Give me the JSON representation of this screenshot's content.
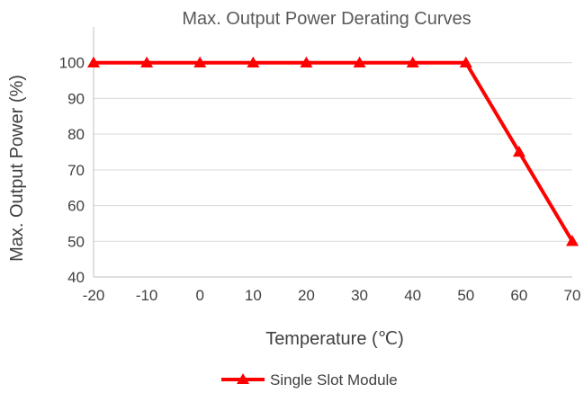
{
  "chart_data": {
    "type": "line",
    "title": "Max. Output Power Derating Curves",
    "xlabel": "Temperature (℃)",
    "ylabel": "Max. Output Power (%)",
    "x": [
      -20,
      -10,
      0,
      10,
      20,
      30,
      40,
      50,
      60,
      70
    ],
    "xticks": [
      "-20",
      "-10",
      "0",
      "10",
      "20",
      "30",
      "40",
      "50",
      "60",
      "70"
    ],
    "yticks": [
      "40",
      "50",
      "60",
      "70",
      "80",
      "90",
      "100"
    ],
    "xlim": [
      -20,
      70
    ],
    "ylim": [
      40,
      110
    ],
    "grid": true,
    "legend_position": "bottom",
    "series": [
      {
        "name": "Single Slot Module",
        "color": "#ff0000",
        "marker": "triangle",
        "values": [
          100,
          100,
          100,
          100,
          100,
          100,
          100,
          100,
          75,
          50
        ]
      }
    ]
  }
}
